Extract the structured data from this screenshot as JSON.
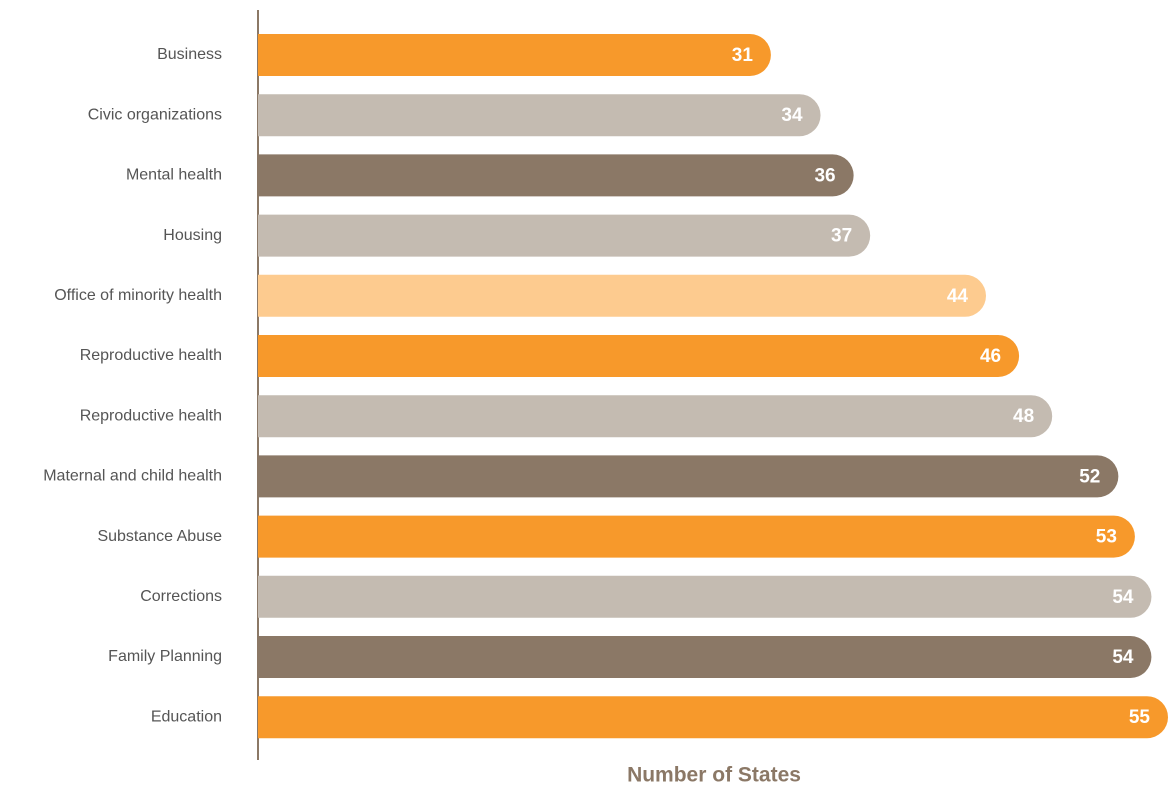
{
  "chart_data": {
    "type": "bar",
    "orientation": "horizontal",
    "x_label": "Number of States",
    "categories": [
      "Business",
      "Civic organizations",
      "Mental health",
      "Housing",
      "Office of minority health",
      "Reproductive health",
      "Reproductive health",
      "Maternal and child health",
      "Substance Abuse",
      "Corrections",
      "Family Planning",
      "Education"
    ],
    "values": [
      31,
      34,
      36,
      37,
      44,
      46,
      48,
      52,
      53,
      54,
      54,
      55
    ],
    "colors": [
      "#f7992b",
      "#c4bbb1",
      "#8b7866",
      "#c4bbb1",
      "#fdcb8f",
      "#f7992b",
      "#c4bbb1",
      "#8b7866",
      "#f7992b",
      "#c4bbb1",
      "#8b7866",
      "#f7992b"
    ],
    "xlim": [
      0,
      55
    ]
  }
}
